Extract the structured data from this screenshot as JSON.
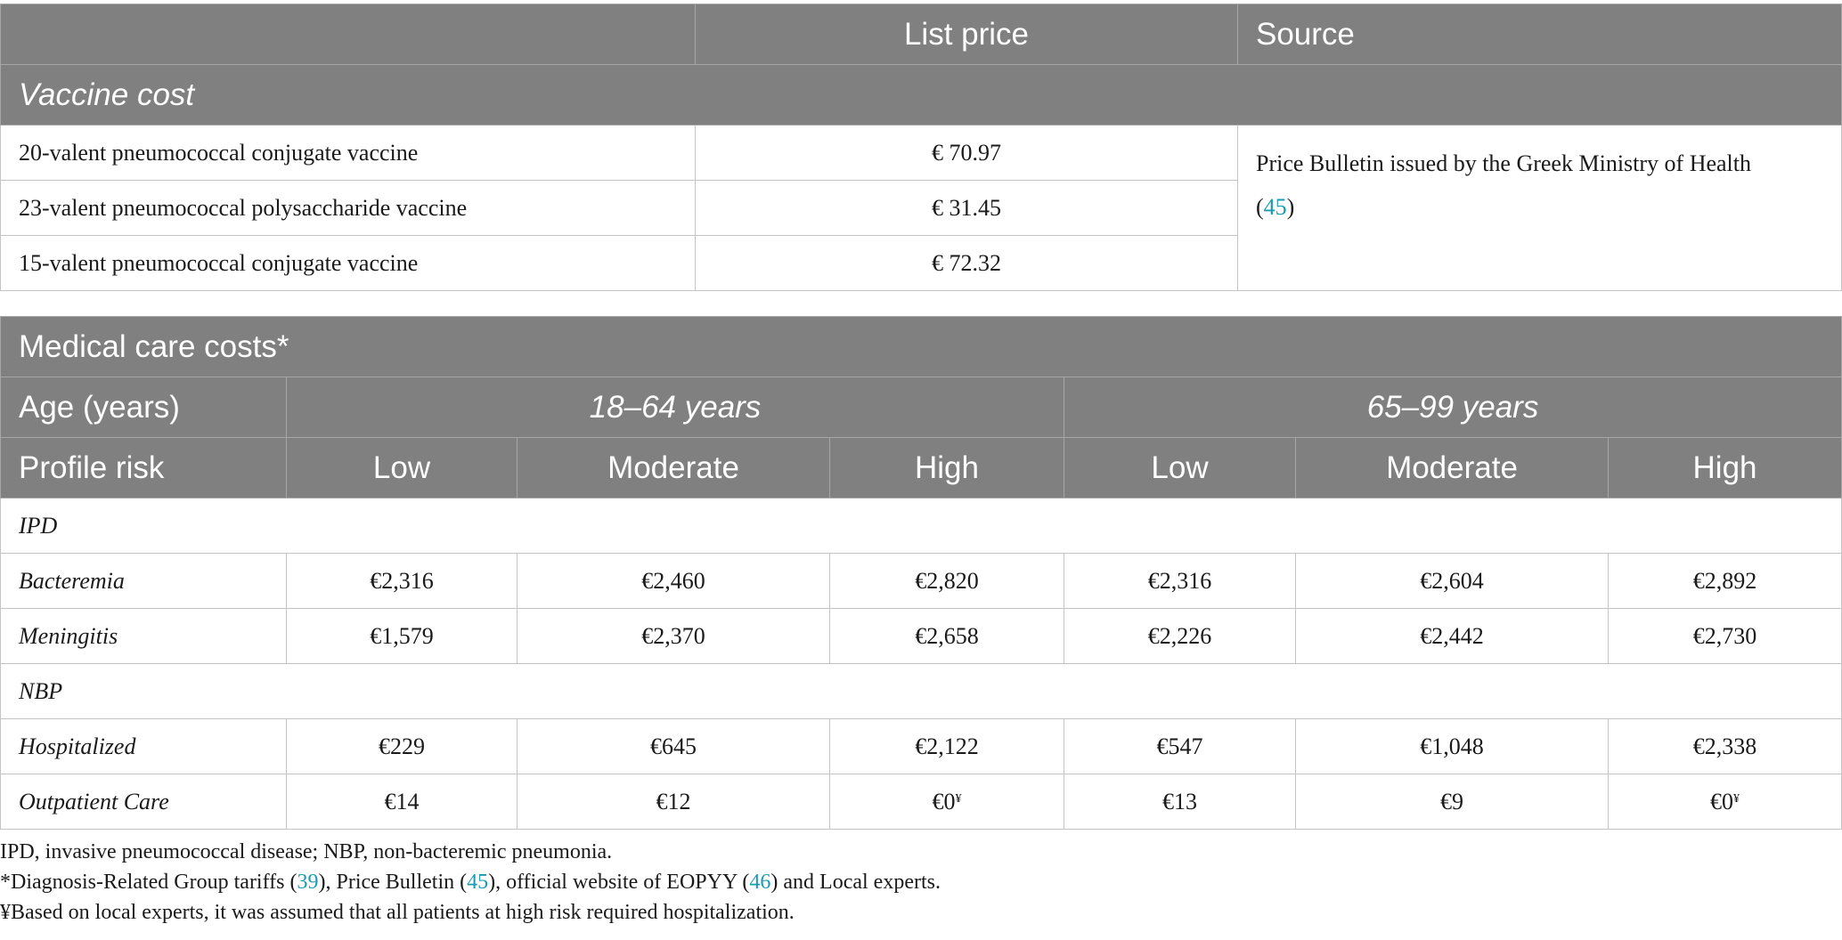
{
  "vaccine_table": {
    "header": {
      "col1": "",
      "col2": "List price",
      "col3": "Source"
    },
    "section_label": "Vaccine cost",
    "rows": [
      {
        "name": "20-valent pneumococcal conjugate vaccine",
        "price": "€ 70.97"
      },
      {
        "name": "23-valent pneumococcal polysaccharide vaccine",
        "price": "€ 31.45"
      },
      {
        "name": "15-valent pneumococcal conjugate vaccine",
        "price": "€ 72.32"
      }
    ],
    "source_text": "Price Bulletin issued by the Greek Ministry of Health",
    "source_ref_open": "(",
    "source_ref": "45",
    "source_ref_close": ")"
  },
  "medical_table": {
    "title": "Medical care costs*",
    "age_label": "Age (years)",
    "age_groups": [
      "18–64 years",
      "65–99 years"
    ],
    "risk_label": "Profile risk",
    "risk_levels": [
      "Low",
      "Moderate",
      "High",
      "Low",
      "Moderate",
      "High"
    ],
    "groups": [
      {
        "label": "IPD",
        "rows": [
          {
            "name": "Bacteremia",
            "values": [
              "€2,316",
              "€2,460",
              "€2,820",
              "€2,316",
              "€2,604",
              "€2,892"
            ]
          },
          {
            "name": "Meningitis",
            "values": [
              "€1,579",
              "€2,370",
              "€2,658",
              "€2,226",
              "€2,442",
              "€2,730"
            ]
          }
        ]
      },
      {
        "label": "NBP",
        "rows": [
          {
            "name": "Hospitalized",
            "values": [
              "€229",
              "€645",
              "€2,122",
              "€547",
              "€1,048",
              "€2,338"
            ]
          },
          {
            "name": "Outpatient Care",
            "values": [
              "€14",
              "€12",
              "€0",
              "€13",
              "€9",
              "€0"
            ],
            "superscript": "¥"
          }
        ]
      }
    ]
  },
  "notes": {
    "line1": "IPD, invasive pneumococcal disease; NBP, non-bacteremic pneumonia.",
    "line2": {
      "a": "*Diagnosis-Related Group tariffs (",
      "ref1": "39",
      "b": "), Price Bulletin (",
      "ref2": "45",
      "c": "), official website of EOPYY (",
      "ref3": "46",
      "d": ") and Local experts."
    },
    "line3": "¥Based on local experts, it was assumed that all patients at high risk required hospitalization."
  },
  "colors": {
    "header_bg": "#808080",
    "header_text": "#ffffff",
    "border": "#c4c4c4",
    "link": "#1a9bb0"
  }
}
